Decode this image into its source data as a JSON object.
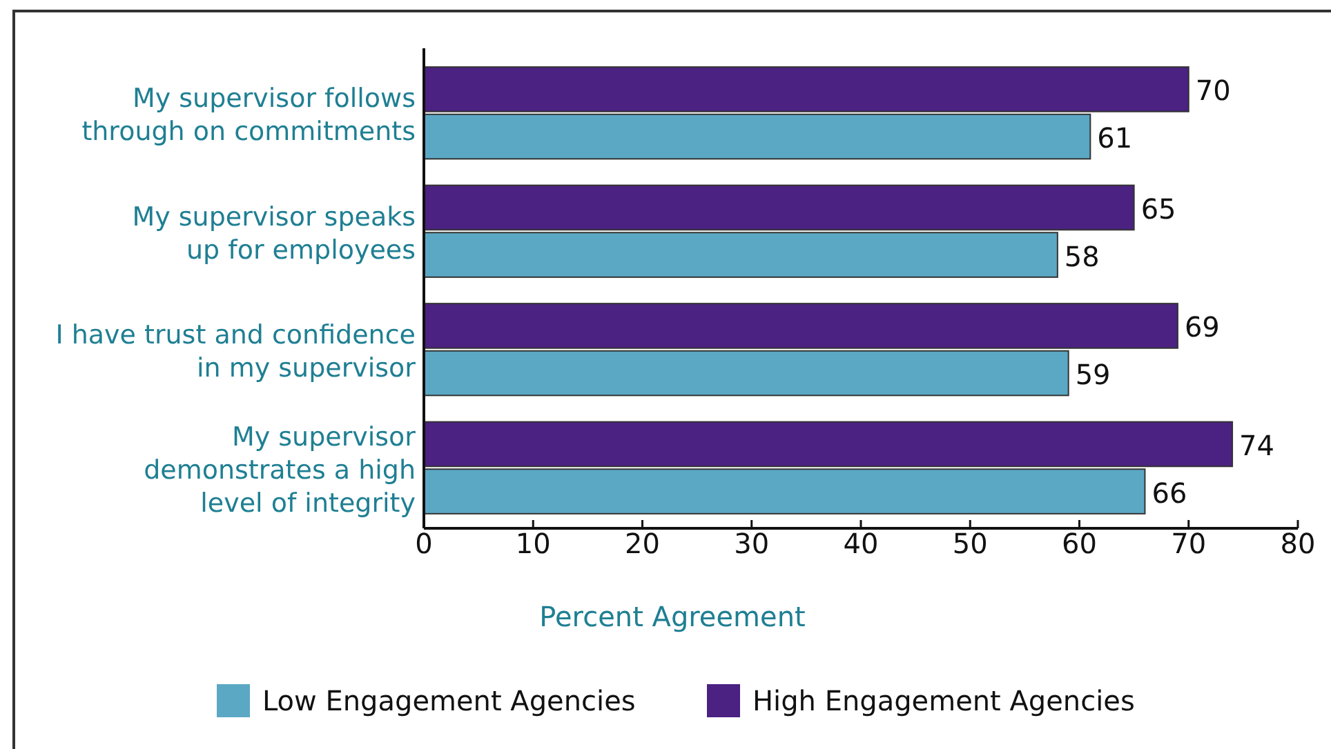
{
  "chart_data": {
    "type": "bar",
    "orientation": "horizontal",
    "categories": [
      "My supervisor follows\nthrough on commitments",
      "My supervisor speaks\nup for employees",
      "I have trust and confidence\nin my supervisor",
      "My supervisor\ndemonstrates a high\nlevel of integrity"
    ],
    "series": [
      {
        "name": "High Engagement Agencies",
        "color": "#4b2182",
        "values": [
          70,
          65,
          69,
          74
        ]
      },
      {
        "name": "Low Engagement Agencies",
        "color": "#5ba8c4",
        "values": [
          61,
          58,
          59,
          66
        ]
      }
    ],
    "xlim": [
      0,
      80
    ],
    "xticks": [
      0,
      10,
      20,
      30,
      40,
      50,
      60,
      70,
      80
    ],
    "xlabel": "Percent Agreement",
    "data_labels": true,
    "legend": "bottom",
    "grid": false
  }
}
